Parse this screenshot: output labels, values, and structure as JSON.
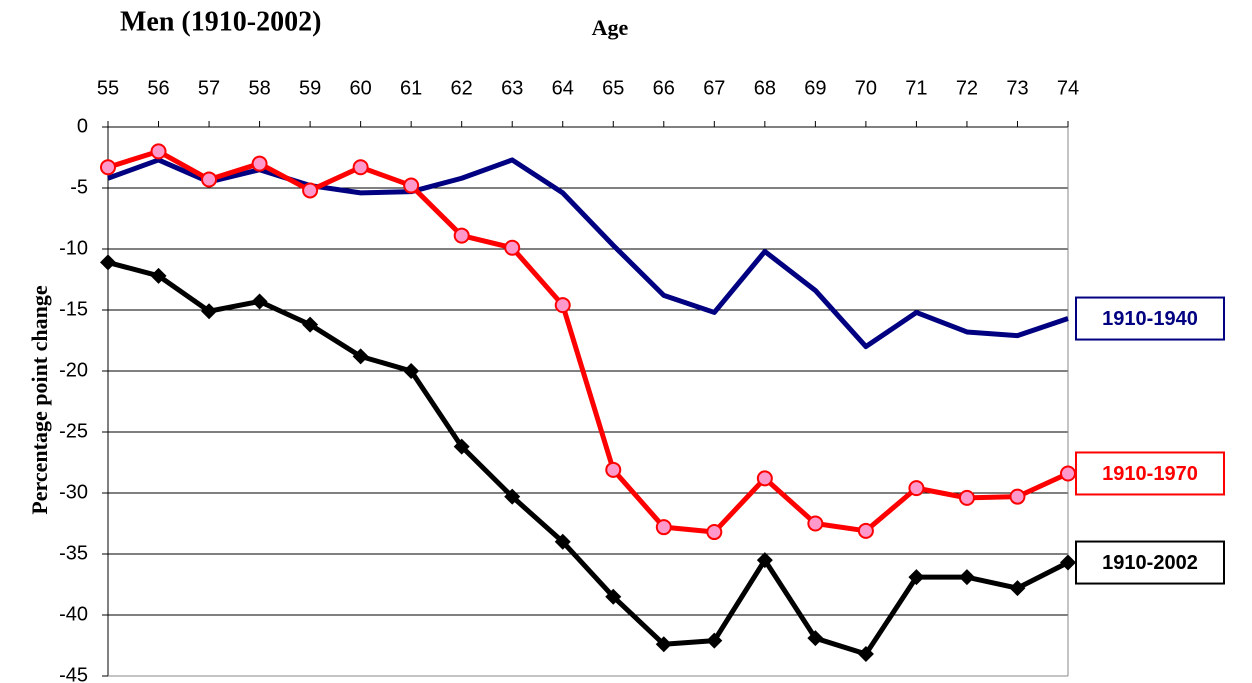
{
  "chart_data": {
    "type": "line",
    "title": "Men (1910-2002)",
    "x_label": "Age",
    "y_label": "Percentage point change",
    "x": [
      55,
      56,
      57,
      58,
      59,
      60,
      61,
      62,
      63,
      64,
      65,
      66,
      67,
      68,
      69,
      70,
      71,
      72,
      73,
      74
    ],
    "xlim": [
      55,
      74
    ],
    "xticks": [
      55,
      56,
      57,
      58,
      59,
      60,
      61,
      62,
      63,
      64,
      65,
      66,
      67,
      68,
      69,
      70,
      71,
      72,
      73,
      74
    ],
    "ylim": [
      -45,
      0
    ],
    "yticks": [
      0,
      -5,
      -10,
      -15,
      -20,
      -25,
      -30,
      -35,
      -40,
      -45
    ],
    "grid": true,
    "series": [
      {
        "name": "1910-1940",
        "color": "#000080",
        "marker": "none",
        "values": [
          -4.2,
          -2.7,
          -4.5,
          -3.5,
          -4.8,
          -5.4,
          -5.3,
          -4.2,
          -2.7,
          -5.4,
          -9.7,
          -13.8,
          -15.2,
          -10.2,
          -13.4,
          -18.0,
          -15.2,
          -16.8,
          -17.1,
          -15.7
        ]
      },
      {
        "name": "1910-1970",
        "color": "#ff0000",
        "marker": "circle",
        "values": [
          -3.3,
          -2.0,
          -4.3,
          -3.0,
          -5.2,
          -3.3,
          -4.8,
          -8.9,
          -9.9,
          -14.6,
          -28.1,
          -32.8,
          -33.2,
          -28.8,
          -32.5,
          -33.1,
          -29.6,
          -30.4,
          -30.3,
          -28.4
        ]
      },
      {
        "name": "1910-2002",
        "color": "#000000",
        "marker": "diamond",
        "values": [
          -11.1,
          -12.2,
          -15.1,
          -14.3,
          -16.2,
          -18.8,
          -20.0,
          -26.2,
          -30.3,
          -34.0,
          -38.5,
          -42.4,
          -42.1,
          -35.5,
          -41.9,
          -43.2,
          -36.9,
          -36.9,
          -37.8,
          -35.7
        ]
      }
    ]
  }
}
